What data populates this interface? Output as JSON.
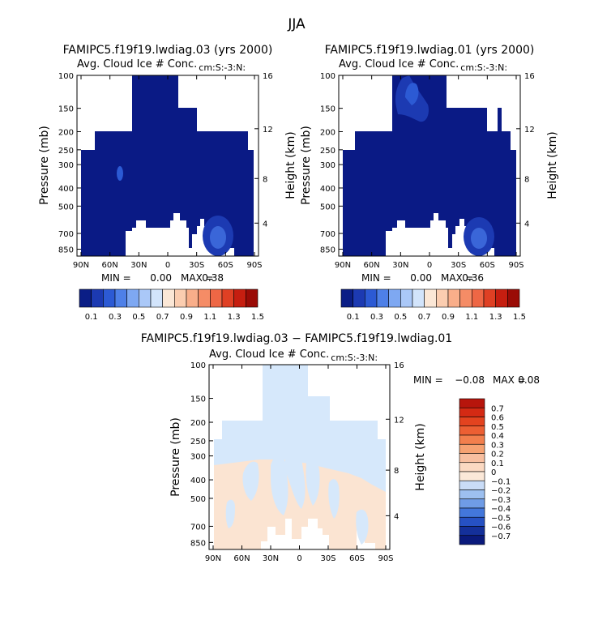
{
  "page_title": "JJA",
  "chart_data": [
    {
      "type": "contour",
      "title": "FAMIPC5.f19f19.lwdiag.03 (yrs 2000)",
      "subtitle": "Avg. Cloud Ice # Conc.",
      "units": "cm:S:-3:N:",
      "ylabel": "Pressure (mb)",
      "y2label": "Height (km)",
      "x_ticks": [
        "90N",
        "60N",
        "30N",
        "0",
        "30S",
        "60S",
        "90S"
      ],
      "x_values": [
        90,
        60,
        30,
        0,
        -30,
        -60,
        -90
      ],
      "y_ticks": [
        "100",
        "150",
        "200",
        "250",
        "300",
        "400",
        "500",
        "700",
        "850"
      ],
      "y_values": [
        100,
        150,
        200,
        250,
        300,
        400,
        500,
        700,
        850
      ],
      "y_range": [
        100,
        925
      ],
      "y2_ticks": [
        "16",
        "12",
        "8",
        "4"
      ],
      "y2_values": [
        16,
        12,
        8,
        4
      ],
      "min_label": "MIN =",
      "min_value": "0.00",
      "max_label": "MAX =",
      "max_value": "0.38",
      "filled_value": 0.1,
      "maximum_feature": {
        "lat": -55,
        "pressure": 700,
        "value": 0.38
      }
    },
    {
      "type": "contour",
      "title": "FAMIPC5.f19f19.lwdiag.01 (yrs 2000)",
      "subtitle": "Avg. Cloud Ice # Conc.",
      "units": "cm:S:-3:N:",
      "ylabel": "Pressure (mb)",
      "y2label": "Height (km)",
      "x_ticks": [
        "90N",
        "60N",
        "30N",
        "0",
        "30S",
        "60S",
        "90S"
      ],
      "x_values": [
        90,
        60,
        30,
        0,
        -30,
        -60,
        -90
      ],
      "y_ticks": [
        "100",
        "150",
        "200",
        "250",
        "300",
        "400",
        "500",
        "700",
        "850"
      ],
      "y_values": [
        100,
        150,
        200,
        250,
        300,
        400,
        500,
        700,
        850
      ],
      "y_range": [
        100,
        925
      ],
      "y2_ticks": [
        "16",
        "12",
        "8",
        "4"
      ],
      "y2_values": [
        16,
        12,
        8,
        4
      ],
      "min_label": "MIN =",
      "min_value": "0.00",
      "max_label": "MAX =",
      "max_value": "0.36",
      "filled_value": 0.1,
      "maximum_feature": {
        "lat": -55,
        "pressure": 700,
        "value": 0.36
      }
    },
    {
      "type": "contour",
      "title": "FAMIPC5.f19f19.lwdiag.03 − FAMIPC5.f19f19.lwdiag.01",
      "subtitle": "Avg. Cloud Ice # Conc.",
      "units": "cm:S:-3:N:",
      "ylabel": "Pressure (mb)",
      "y2label": "Height (km)",
      "x_ticks": [
        "90N",
        "60N",
        "30N",
        "0",
        "30S",
        "60S",
        "90S"
      ],
      "x_values": [
        90,
        60,
        30,
        0,
        -30,
        -60,
        -90
      ],
      "y_ticks": [
        "100",
        "150",
        "200",
        "250",
        "300",
        "400",
        "500",
        "700",
        "850"
      ],
      "y_values": [
        100,
        150,
        200,
        250,
        300,
        400,
        500,
        700,
        850
      ],
      "y_range": [
        100,
        925
      ],
      "y2_ticks": [
        "16",
        "12",
        "8",
        "4"
      ],
      "y2_values": [
        16,
        12,
        8,
        4
      ],
      "min_label": "MIN =",
      "min_value": "−0.08",
      "max_label": "MAX =",
      "max_value": "0.08",
      "upper_region_value": -0.05,
      "lower_region_value": 0.05
    }
  ],
  "colorbars": {
    "absolute": {
      "labels": [
        "0.1",
        "0.3",
        "0.5",
        "0.7",
        "0.9",
        "1.1",
        "1.3",
        "1.5"
      ],
      "colors": [
        "#0b1e86",
        "#1c3ab2",
        "#2c5ad4",
        "#4e80e8",
        "#7ea8f2",
        "#aac8f8",
        "#d2e4fb",
        "#fbe7d6",
        "#fbcdb0",
        "#f9ae8a",
        "#f58c66",
        "#ee6745",
        "#df4024",
        "#c61e10",
        "#9a0b06"
      ]
    },
    "difference": {
      "labels": [
        "0.7",
        "0.6",
        "0.5",
        "0.4",
        "0.3",
        "0.2",
        "0.1",
        "0",
        "−0.1",
        "−0.2",
        "−0.3",
        "−0.4",
        "−0.5",
        "−0.6",
        "−0.7"
      ],
      "colors": [
        "#b7150c",
        "#d42a14",
        "#e3431f",
        "#ec5f33",
        "#f27f4d",
        "#f6a272",
        "#f8bfa0",
        "#fbd9c2",
        "#fbe8d8",
        "#c9dcf7",
        "#9dc0f0",
        "#6f9ce6",
        "#4377db",
        "#2651c3",
        "#14309a",
        "#0a1a7c"
      ]
    }
  }
}
